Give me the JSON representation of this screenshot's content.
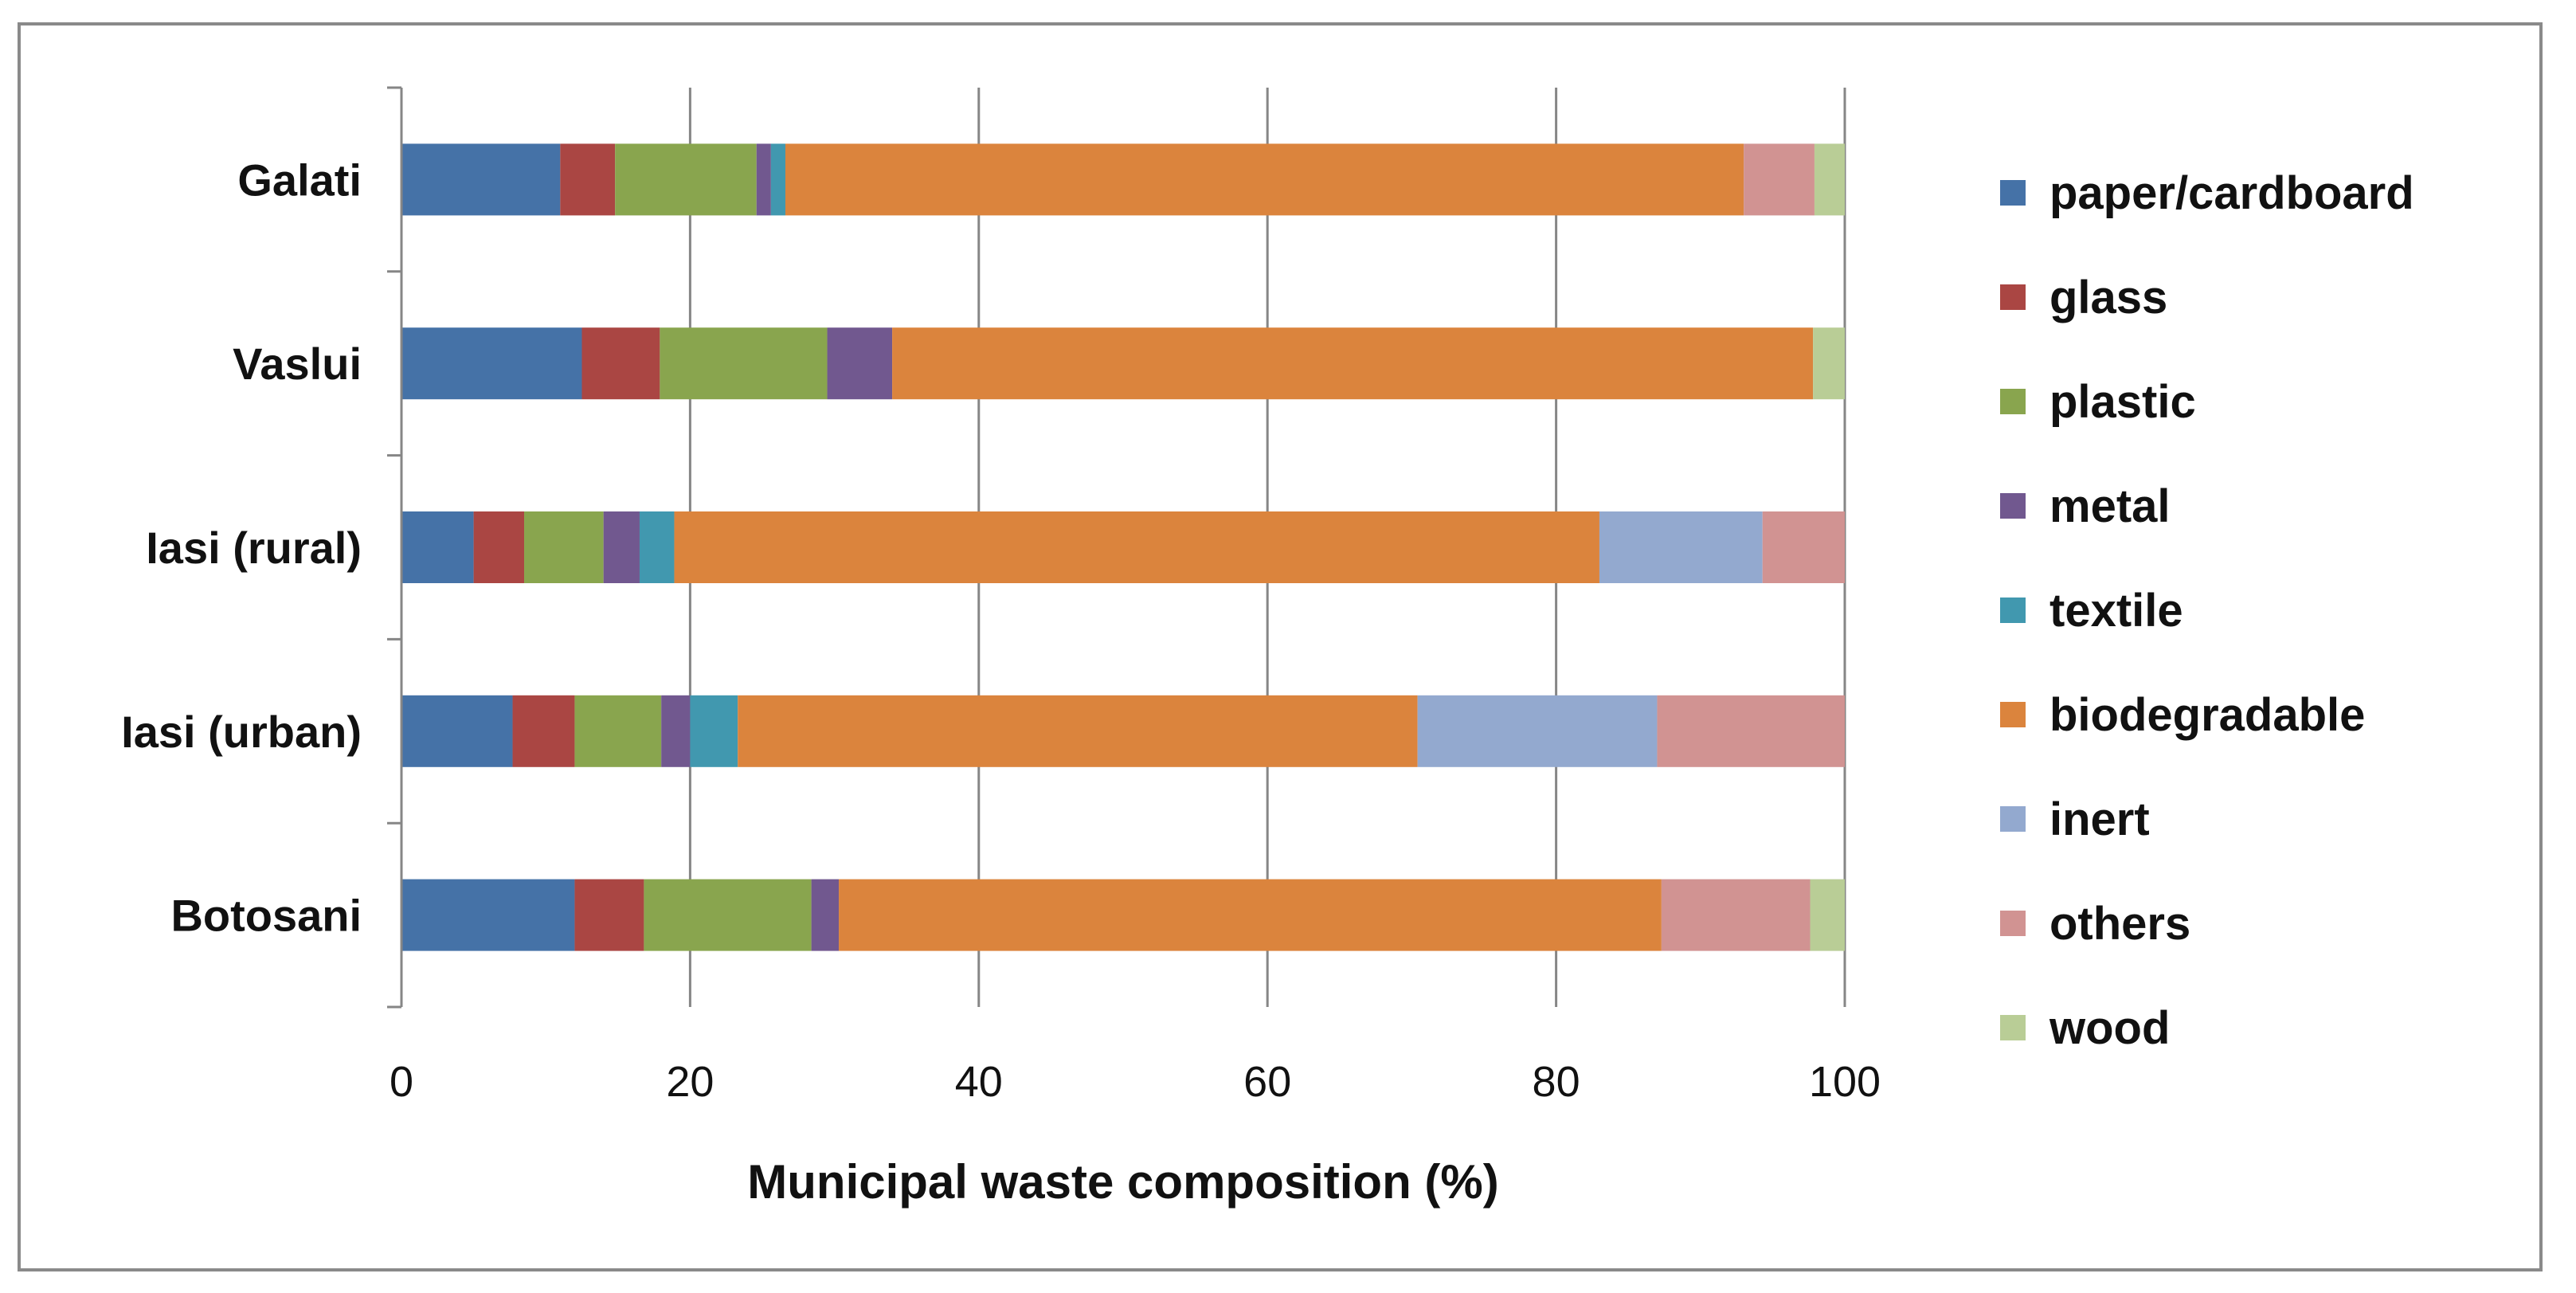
{
  "chart_data": {
    "type": "bar",
    "orientation": "horizontal",
    "stacked": true,
    "title": "",
    "xlabel": "Municipal waste composition (%)",
    "ylabel": "",
    "xlim": [
      0,
      100
    ],
    "xticks": [
      0,
      20,
      40,
      60,
      80,
      100
    ],
    "grid": "vertical major gridlines",
    "legend_position": "right",
    "categories": [
      "Botosani",
      "Iasi (urban)",
      "Iasi (rural)",
      "Vaslui",
      "Galati"
    ],
    "series": [
      {
        "name": "paper/cardboard",
        "color": "#4572a7",
        "values": [
          12,
          7.7,
          5,
          12.5,
          11
        ]
      },
      {
        "name": "glass",
        "color": "#aa4643",
        "values": [
          4.8,
          4.3,
          3.5,
          5.4,
          3.8
        ]
      },
      {
        "name": "plastic",
        "color": "#89a54e",
        "values": [
          11.6,
          6,
          5.5,
          11.6,
          9.8
        ]
      },
      {
        "name": "metal",
        "color": "#71588f",
        "values": [
          1.9,
          2,
          2.5,
          4.5,
          1
        ]
      },
      {
        "name": "textile",
        "color": "#4198af",
        "values": [
          0,
          3.3,
          2.4,
          0,
          1
        ]
      },
      {
        "name": "biodegradable",
        "color": "#db843d",
        "values": [
          57,
          47.1,
          64.1,
          63.8,
          66.4
        ]
      },
      {
        "name": "inert",
        "color": "#93a9cf",
        "values": [
          0,
          16.6,
          11.3,
          0,
          0
        ]
      },
      {
        "name": "others",
        "color": "#d19392",
        "values": [
          10.3,
          13,
          5.7,
          0,
          4.9
        ]
      },
      {
        "name": "wood",
        "color": "#b9cd96",
        "values": [
          2.4,
          0,
          0,
          2.2,
          2.1
        ]
      }
    ]
  }
}
